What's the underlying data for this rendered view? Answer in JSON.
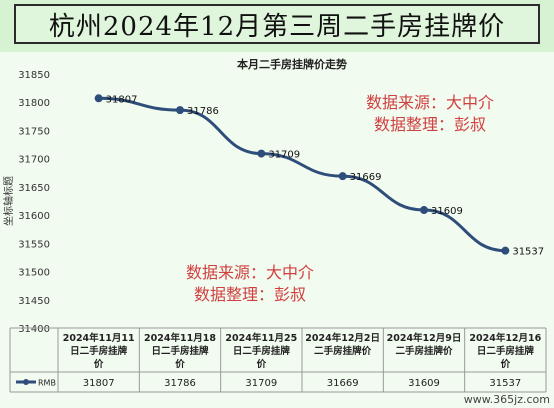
{
  "page_title": "杭州2024年12月第三周二手房挂牌价",
  "watermarks": [
    {
      "line1": "数据来源：大中介",
      "line2": "数据整理：彭叔"
    },
    {
      "line1": "数据来源：大中介",
      "line2": "数据整理：彭叔"
    }
  ],
  "footer_text": "www.365jz.com",
  "colors": {
    "line": "#2e4d7a",
    "watermark": "#d04040",
    "grid": "#c9d6c7",
    "frame_bg": "#d6f2d2"
  },
  "chart_data": {
    "type": "line",
    "title": "本月二手房挂牌价走势",
    "ylabel": "坐标轴标题",
    "xlabel": "",
    "ylim": [
      31400,
      31850
    ],
    "yticks": [
      31400,
      31450,
      31500,
      31550,
      31600,
      31650,
      31700,
      31750,
      31800,
      31850
    ],
    "grid": false,
    "legend_position": "table-left",
    "categories": [
      "2024年11月11日二手房挂牌价",
      "2024年11月18日二手房挂牌价",
      "2024年11月25日二手房挂牌价",
      "2024年12月2日二手房挂牌价",
      "2024年12月9日二手房挂牌价",
      "2024年12月16日二手房挂牌价"
    ],
    "category_lines": [
      [
        "2024年11月11",
        "日二手房挂牌",
        "价"
      ],
      [
        "2024年11月18",
        "日二手房挂牌",
        "价"
      ],
      [
        "2024年11月25",
        "日二手房挂牌",
        "价"
      ],
      [
        "2024年12月2日",
        "二手房挂牌价",
        ""
      ],
      [
        "2024年12月9日",
        "二手房挂牌价",
        ""
      ],
      [
        "2024年12月16",
        "日二手房挂牌",
        "价"
      ]
    ],
    "series": [
      {
        "name": "RMB",
        "values": [
          31807,
          31786,
          31709,
          31669,
          31609,
          31537
        ]
      }
    ]
  }
}
